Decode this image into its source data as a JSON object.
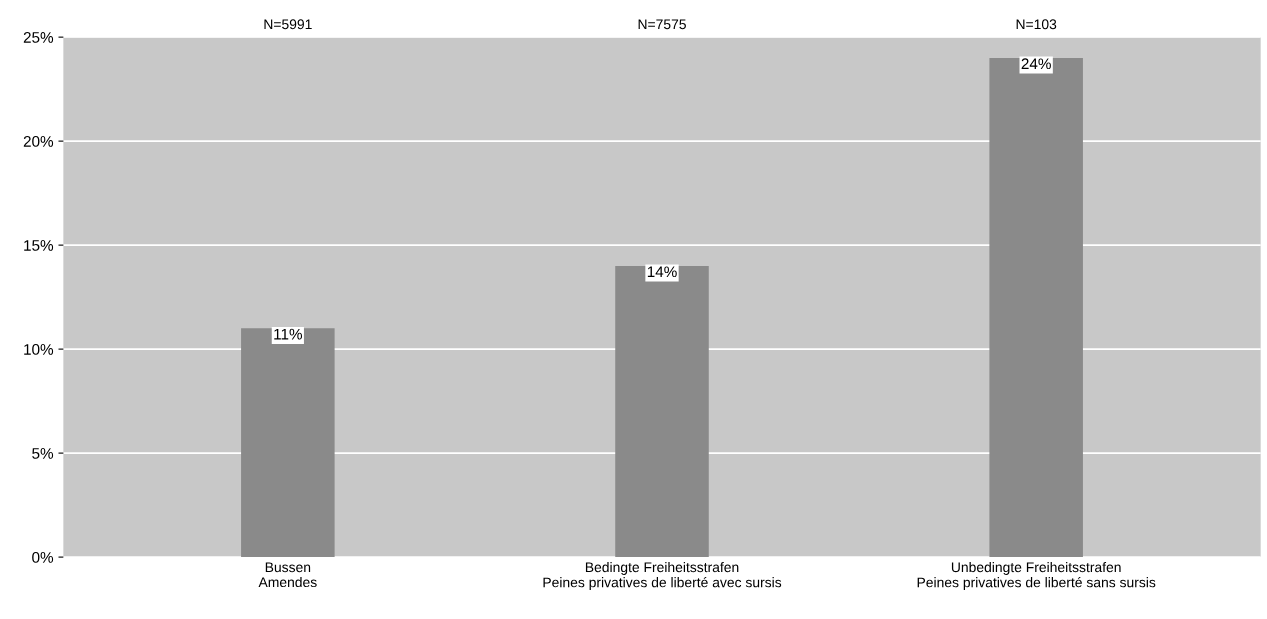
{
  "chart_data": {
    "type": "bar",
    "categories": [
      "Bussen\nAmendes",
      "Bedingte Freiheitsstrafen\nPeines privatives de liberté avec sursis",
      "Unbedingte Freiheitsstrafen\nPeines privatives de liberté sans sursis"
    ],
    "values": [
      11,
      14,
      24
    ],
    "value_labels": [
      "11%",
      "14%",
      "24%"
    ],
    "color": "#8a8a8a",
    "ylim": [
      0,
      25
    ],
    "yticks": [
      {
        "value": 0,
        "label": "0%"
      },
      {
        "value": 5,
        "label": "5%"
      },
      {
        "value": 10,
        "label": "10%"
      },
      {
        "value": 15,
        "label": "15%"
      },
      {
        "value": 20,
        "label": "20%"
      },
      {
        "value": 25,
        "label": "25%"
      }
    ],
    "grid": "y",
    "annotations": [
      "N=5991",
      "N=7575",
      "N=103"
    ]
  }
}
